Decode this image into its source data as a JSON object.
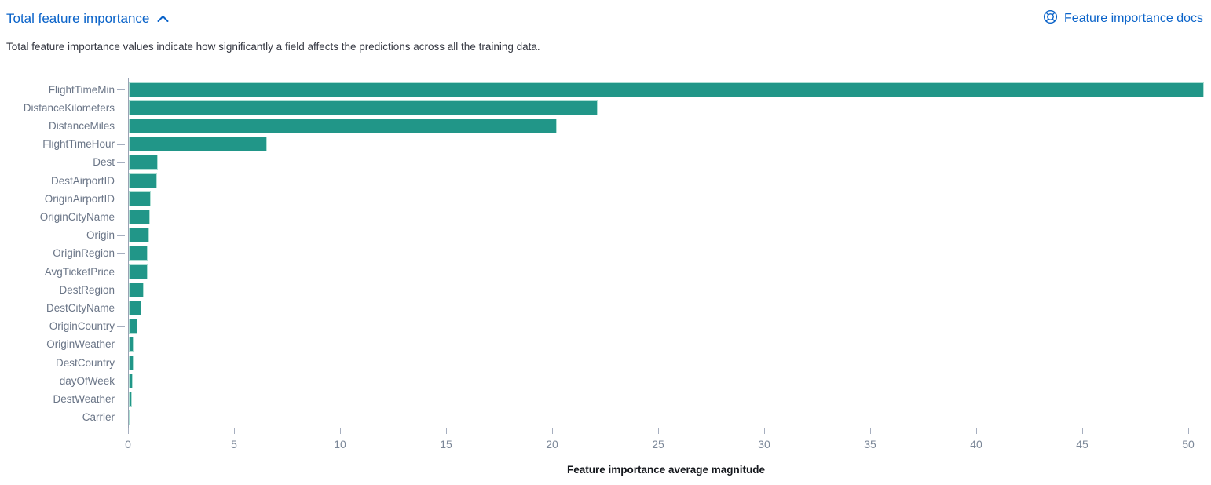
{
  "header": {
    "title": "Total feature importance",
    "docs_link": "Feature importance docs"
  },
  "subtitle": "Total feature importance values indicate how significantly a field affects the predictions across all the training data.",
  "icons": {
    "collapse_toggle": "chevron-up",
    "docs": "life-ring-help"
  },
  "colors": {
    "link_blue": "#0a63c9",
    "bar_teal": "#219688"
  },
  "chart_data": {
    "type": "bar",
    "orientation": "horizontal",
    "title": "",
    "xlabel": "Feature importance average magnitude",
    "ylabel": "",
    "categories": [
      "FlightTimeMin",
      "DistanceKilometers",
      "DistanceMiles",
      "FlightTimeHour",
      "Dest",
      "DestAirportID",
      "OriginAirportID",
      "OriginCityName",
      "Origin",
      "OriginRegion",
      "AvgTicketPrice",
      "DestRegion",
      "DestCityName",
      "OriginCountry",
      "OriginWeather",
      "DestCountry",
      "dayOfWeek",
      "DestWeather",
      "Carrier"
    ],
    "values": [
      50.7,
      22.1,
      20.2,
      6.5,
      1.37,
      1.33,
      1.05,
      1.0,
      0.97,
      0.9,
      0.88,
      0.72,
      0.6,
      0.41,
      0.22,
      0.21,
      0.2,
      0.15,
      0.07
    ],
    "xticks": [
      0,
      5,
      10,
      15,
      20,
      25,
      30,
      35,
      40,
      45,
      50
    ],
    "xlim": [
      0,
      50.7
    ],
    "grid": false,
    "legend": "none"
  }
}
